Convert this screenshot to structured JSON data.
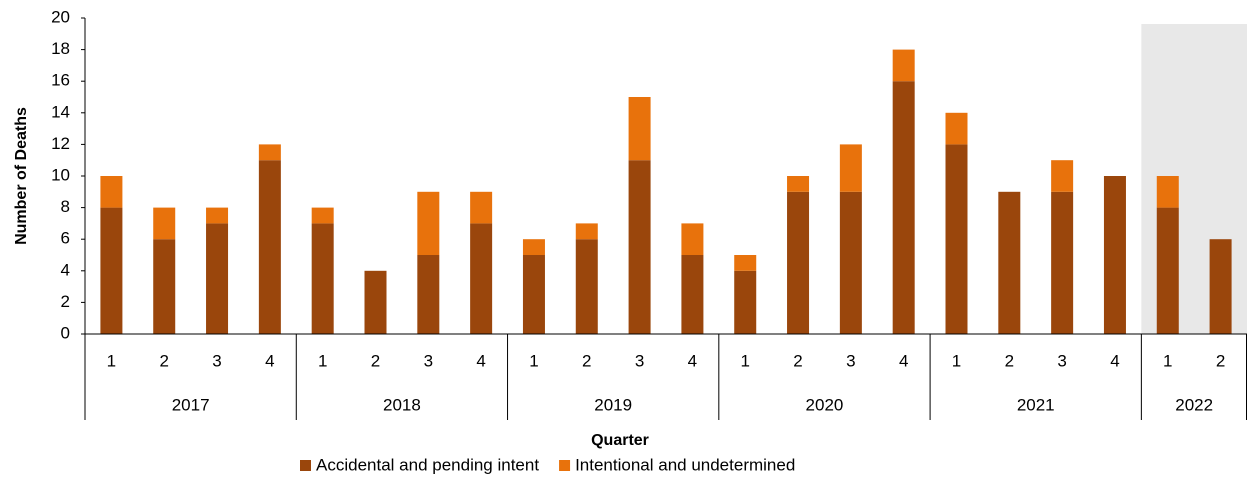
{
  "chart_data": {
    "type": "stacked_bar",
    "y_label": "Number of Deaths",
    "x_label": "Quarter",
    "groups": [
      {
        "label": "2017",
        "categories": [
          "1",
          "2",
          "3",
          "4"
        ]
      },
      {
        "label": "2018",
        "categories": [
          "1",
          "2",
          "3",
          "4"
        ]
      },
      {
        "label": "2019",
        "categories": [
          "1",
          "2",
          "3",
          "4"
        ]
      },
      {
        "label": "2020",
        "categories": [
          "1",
          "2",
          "3",
          "4"
        ]
      },
      {
        "label": "2021",
        "categories": [
          "1",
          "2",
          "3",
          "4"
        ]
      },
      {
        "label": "2022",
        "categories": [
          "1",
          "2"
        ],
        "highlight": true
      }
    ],
    "series": [
      {
        "name": "Accidental and pending intent",
        "color": "#9a460c",
        "values": [
          8,
          6,
          7,
          11,
          7,
          4,
          5,
          7,
          5,
          6,
          11,
          5,
          4,
          9,
          9,
          16,
          12,
          9,
          9,
          10,
          8,
          6
        ]
      },
      {
        "name": "Intentional and undetermined",
        "color": "#e8720c",
        "values": [
          2,
          2,
          1,
          1,
          1,
          0,
          4,
          2,
          1,
          1,
          4,
          2,
          1,
          1,
          3,
          2,
          2,
          0,
          2,
          0,
          2,
          0
        ]
      }
    ],
    "ylim": [
      0,
      20
    ],
    "yticks": [
      0,
      2,
      4,
      6,
      8,
      10,
      12,
      14,
      16,
      18,
      20
    ],
    "legend": "bottom"
  }
}
